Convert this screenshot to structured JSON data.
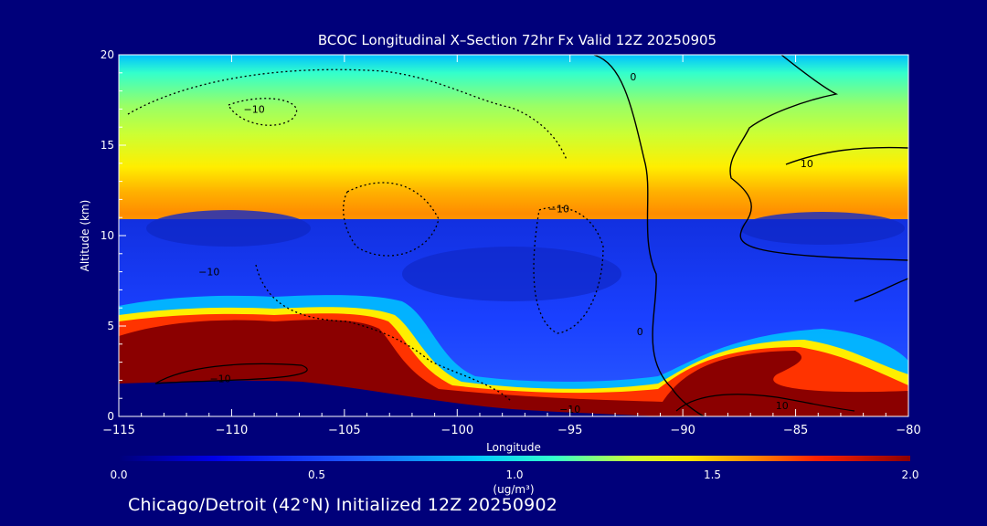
{
  "chart_data": {
    "type": "heatmap",
    "title": "BCOC Longitudinal X–Section 72hr  Fx Valid 12Z 20250905",
    "xlabel": "Longitude",
    "ylabel": "Altitude (km)",
    "xlim": [
      -115,
      -80
    ],
    "ylim": [
      0,
      20
    ],
    "x_ticks": [
      "−115",
      "−110",
      "−105",
      "−100",
      "−95",
      "−90",
      "−85",
      "−80"
    ],
    "y_ticks": [
      "0",
      "5",
      "10",
      "15",
      "20"
    ],
    "colorbar": {
      "min": 0.0,
      "max": 2.0,
      "ticks": [
        "0.0",
        "0.5",
        "1.0",
        "1.5",
        "2.0"
      ],
      "units": "(ug/m³)"
    },
    "contour_labels": [
      {
        "text": "−10",
        "lon": -109,
        "alt": 17.0
      },
      {
        "text": "−10",
        "lon": -95.5,
        "alt": 11.5
      },
      {
        "text": "−10",
        "lon": -111,
        "alt": 8.0
      },
      {
        "text": "−10",
        "lon": -110.5,
        "alt": 2.1
      },
      {
        "text": "−10",
        "lon": -95,
        "alt": 0.4
      },
      {
        "text": "0",
        "lon": -92.2,
        "alt": 18.8
      },
      {
        "text": "0",
        "lon": -91.9,
        "alt": 4.7
      },
      {
        "text": "10",
        "lon": -84.5,
        "alt": 14.0
      },
      {
        "text": "10",
        "lon": -85.6,
        "alt": 0.6
      }
    ],
    "fields": {
      "upper_layer": {
        "alt_center_km": 14.6,
        "peak_ugm3": 1.6
      },
      "boundary_layer_west": {
        "lon_range": [
          -115,
          -102
        ],
        "top_km": 5.2,
        "value_ugm3": 2.0
      },
      "boundary_layer_east": {
        "lon_range": [
          -89,
          -80
        ],
        "top_km": 3.5,
        "value_ugm3": 2.0
      }
    }
  },
  "footer": {
    "caption": "Chicago/Detroit (42°N) Initialized 12Z 20250902"
  },
  "colors": {
    "background": "#00007a",
    "low": "#1e3cff",
    "high": "#8b0000"
  }
}
